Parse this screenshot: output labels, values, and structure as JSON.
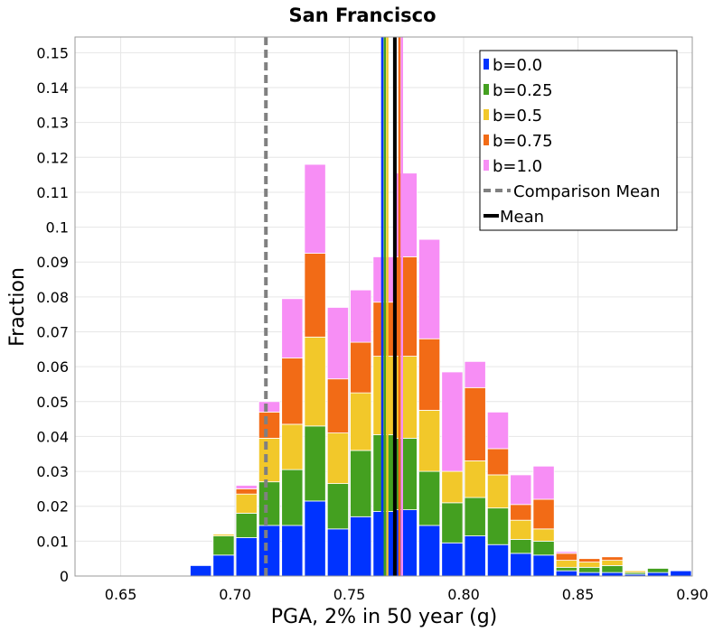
{
  "chart_data": {
    "type": "bar",
    "stacked": true,
    "title": "San Francisco",
    "xlabel": "PGA, 2% in 50 year (g)",
    "ylabel": "Fraction",
    "xlim": [
      0.63,
      0.9
    ],
    "ylim": [
      0,
      0.1545
    ],
    "grid": true,
    "legend_position": "top-right",
    "x_ticks": [
      {
        "value": 0.65,
        "label": "0.65"
      },
      {
        "value": 0.7,
        "label": "0.70"
      },
      {
        "value": 0.75,
        "label": "0.75"
      },
      {
        "value": 0.8,
        "label": "0.80"
      },
      {
        "value": 0.85,
        "label": "0.85"
      },
      {
        "value": 0.9,
        "label": "0.90"
      }
    ],
    "y_ticks": [
      {
        "value": 0,
        "label": "0"
      },
      {
        "value": 0.01,
        "label": "0.01"
      },
      {
        "value": 0.02,
        "label": "0.02"
      },
      {
        "value": 0.03,
        "label": "0.03"
      },
      {
        "value": 0.04,
        "label": "0.04"
      },
      {
        "value": 0.05,
        "label": "0.05"
      },
      {
        "value": 0.06,
        "label": "0.06"
      },
      {
        "value": 0.07,
        "label": "0.07"
      },
      {
        "value": 0.08,
        "label": "0.08"
      },
      {
        "value": 0.09,
        "label": "0.09"
      },
      {
        "value": 0.1,
        "label": "0.1"
      },
      {
        "value": 0.11,
        "label": "0.11"
      },
      {
        "value": 0.12,
        "label": "0.12"
      },
      {
        "value": 0.13,
        "label": "0.13"
      },
      {
        "value": 0.14,
        "label": "0.14"
      },
      {
        "value": 0.15,
        "label": "0.15"
      }
    ],
    "bin_width": 0.01,
    "bin_starts": [
      0.68,
      0.69,
      0.7,
      0.71,
      0.72,
      0.73,
      0.74,
      0.75,
      0.76,
      0.77,
      0.78,
      0.79,
      0.8,
      0.81,
      0.82,
      0.83,
      0.84,
      0.85,
      0.86,
      0.87,
      0.88,
      0.89
    ],
    "series": [
      {
        "name": "b=0.0",
        "color": "#0033ff",
        "values": [
          0.003,
          0.006,
          0.011,
          0.0145,
          0.0145,
          0.0215,
          0.0135,
          0.017,
          0.0185,
          0.019,
          0.0145,
          0.0095,
          0.0115,
          0.009,
          0.0065,
          0.006,
          0.0015,
          0.001,
          0.001,
          0.0005,
          0.001,
          0.0015
        ]
      },
      {
        "name": "b=0.25",
        "color": "#44a020",
        "values": [
          0.0,
          0.0055,
          0.007,
          0.0125,
          0.016,
          0.0215,
          0.013,
          0.019,
          0.022,
          0.0205,
          0.0155,
          0.0115,
          0.011,
          0.0105,
          0.004,
          0.004,
          0.001,
          0.0015,
          0.002,
          0.0005,
          0.0012,
          0.0
        ]
      },
      {
        "name": "b=0.5",
        "color": "#f2c82a",
        "values": [
          0.0,
          0.0005,
          0.0055,
          0.0125,
          0.013,
          0.0255,
          0.0145,
          0.0165,
          0.0225,
          0.0235,
          0.0175,
          0.009,
          0.0105,
          0.0095,
          0.0055,
          0.0035,
          0.002,
          0.0015,
          0.0015,
          0.0005,
          0.0,
          0.0
        ]
      },
      {
        "name": "b=0.75",
        "color": "#f26b16",
        "values": [
          0.0,
          0.0,
          0.0015,
          0.0075,
          0.019,
          0.024,
          0.0155,
          0.0145,
          0.0155,
          0.0285,
          0.0205,
          0.0,
          0.021,
          0.0075,
          0.0045,
          0.0085,
          0.002,
          0.001,
          0.001,
          0.0,
          0.0,
          0.0
        ]
      },
      {
        "name": "b=1.0",
        "color": "#f78ef5",
        "values": [
          0.0,
          0.0,
          0.001,
          0.003,
          0.017,
          0.0255,
          0.0205,
          0.015,
          0.013,
          0.024,
          0.0285,
          0.0285,
          0.0075,
          0.0105,
          0.0085,
          0.0095,
          0.0005,
          0.0,
          0.0,
          0.0,
          0.0,
          0.0
        ]
      }
    ],
    "comparison_mean": 0.7135,
    "means": [
      {
        "series": "b=0.0",
        "color": "#0033ff",
        "value": 0.7644
      },
      {
        "series": "b=0.25",
        "color": "#44a020",
        "value": 0.7655
      },
      {
        "series": "b=0.5",
        "color": "#f2c82a",
        "value": 0.7666
      },
      {
        "series": "b=0.75",
        "color": "#f26b16",
        "value": 0.7719
      },
      {
        "series": "b=1.0",
        "color": "#f78ef5",
        "value": 0.773
      },
      {
        "series": "all",
        "color": "#000000",
        "value": 0.7699
      }
    ],
    "legend": [
      {
        "label": "b=0.0",
        "kind": "swatch",
        "color": "#0033ff"
      },
      {
        "label": "b=0.25",
        "kind": "swatch",
        "color": "#44a020"
      },
      {
        "label": "b=0.5",
        "kind": "swatch",
        "color": "#f2c82a"
      },
      {
        "label": "b=0.75",
        "kind": "swatch",
        "color": "#f26b16"
      },
      {
        "label": "b=1.0",
        "kind": "swatch",
        "color": "#f78ef5"
      },
      {
        "label": "Comparison Mean",
        "kind": "dashed-line",
        "color": "#808080"
      },
      {
        "label": "Mean",
        "kind": "solid-line",
        "color": "#000000"
      }
    ]
  }
}
